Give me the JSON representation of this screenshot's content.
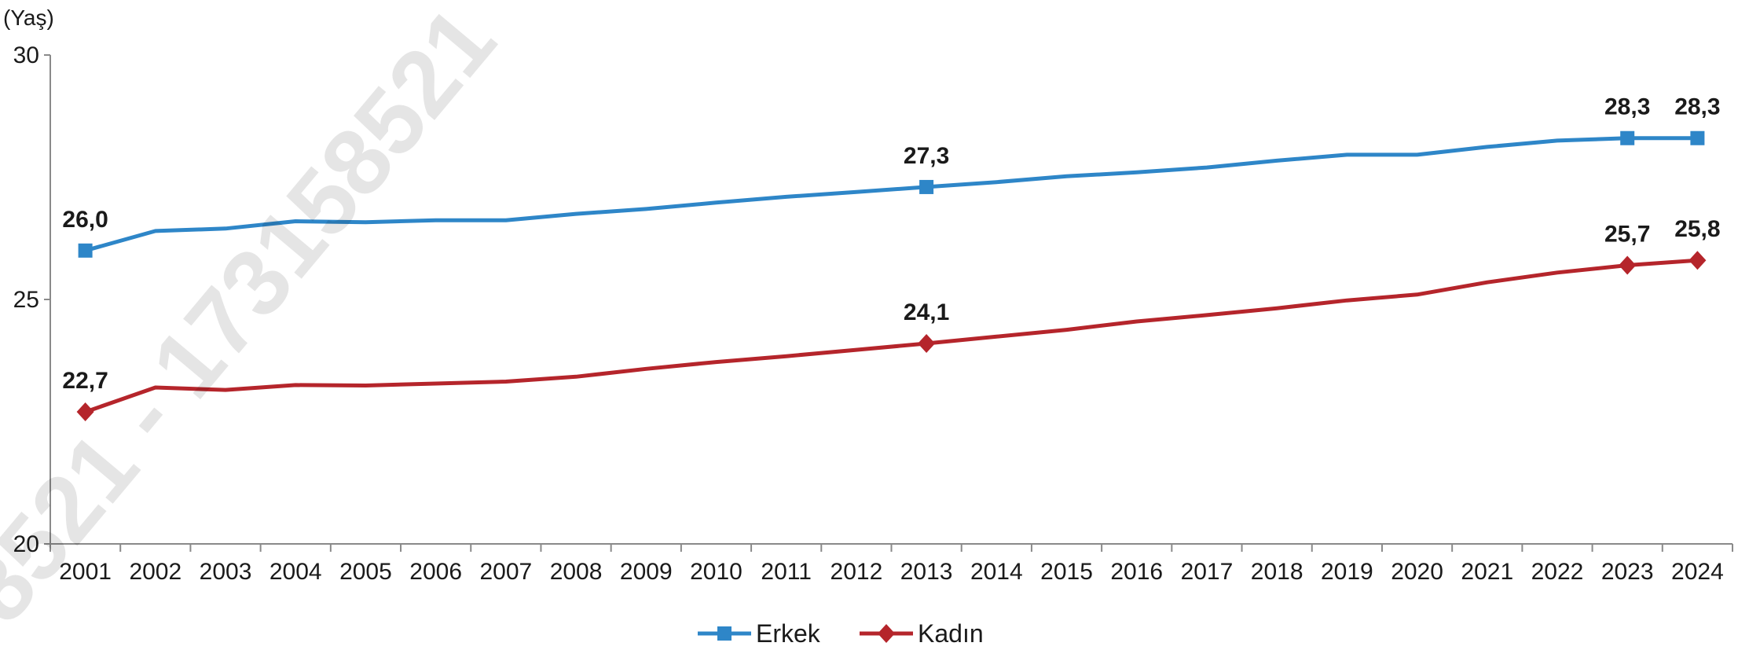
{
  "watermark": "8521 - 173158521",
  "chart_data": {
    "type": "line",
    "ylabel": "(Yaş)",
    "ylim": [
      20,
      30
    ],
    "yticks": [
      20,
      25,
      30
    ],
    "grid": false,
    "legend_position": "bottom",
    "categories": [
      "2001",
      "2002",
      "2003",
      "2004",
      "2005",
      "2006",
      "2007",
      "2008",
      "2009",
      "2010",
      "2011",
      "2012",
      "2013",
      "2014",
      "2015",
      "2016",
      "2017",
      "2018",
      "2019",
      "2020",
      "2021",
      "2022",
      "2023",
      "2024"
    ],
    "series": [
      {
        "name": "Erkek",
        "color": "#2e86c8",
        "marker": "square",
        "values": [
          26.0,
          26.4,
          26.45,
          26.6,
          26.58,
          26.62,
          26.62,
          26.75,
          26.85,
          26.98,
          27.1,
          27.2,
          27.3,
          27.4,
          27.52,
          27.6,
          27.7,
          27.84,
          27.96,
          27.96,
          28.12,
          28.25,
          28.3,
          28.3
        ],
        "labeled_points": [
          {
            "index": 0,
            "text": "26,0"
          },
          {
            "index": 12,
            "text": "27,3"
          },
          {
            "index": 22,
            "text": "28,3"
          },
          {
            "index": 23,
            "text": "28,3"
          }
        ]
      },
      {
        "name": "Kadın",
        "color": "#b5252b",
        "marker": "diamond",
        "values": [
          22.7,
          23.2,
          23.15,
          23.25,
          23.24,
          23.28,
          23.32,
          23.42,
          23.58,
          23.72,
          23.84,
          23.97,
          24.1,
          24.24,
          24.38,
          24.55,
          24.68,
          24.82,
          24.98,
          25.1,
          25.35,
          25.55,
          25.7,
          25.8
        ],
        "labeled_points": [
          {
            "index": 0,
            "text": "22,7"
          },
          {
            "index": 12,
            "text": "24,1"
          },
          {
            "index": 22,
            "text": "25,7"
          },
          {
            "index": 23,
            "text": "25,8"
          }
        ]
      }
    ]
  }
}
